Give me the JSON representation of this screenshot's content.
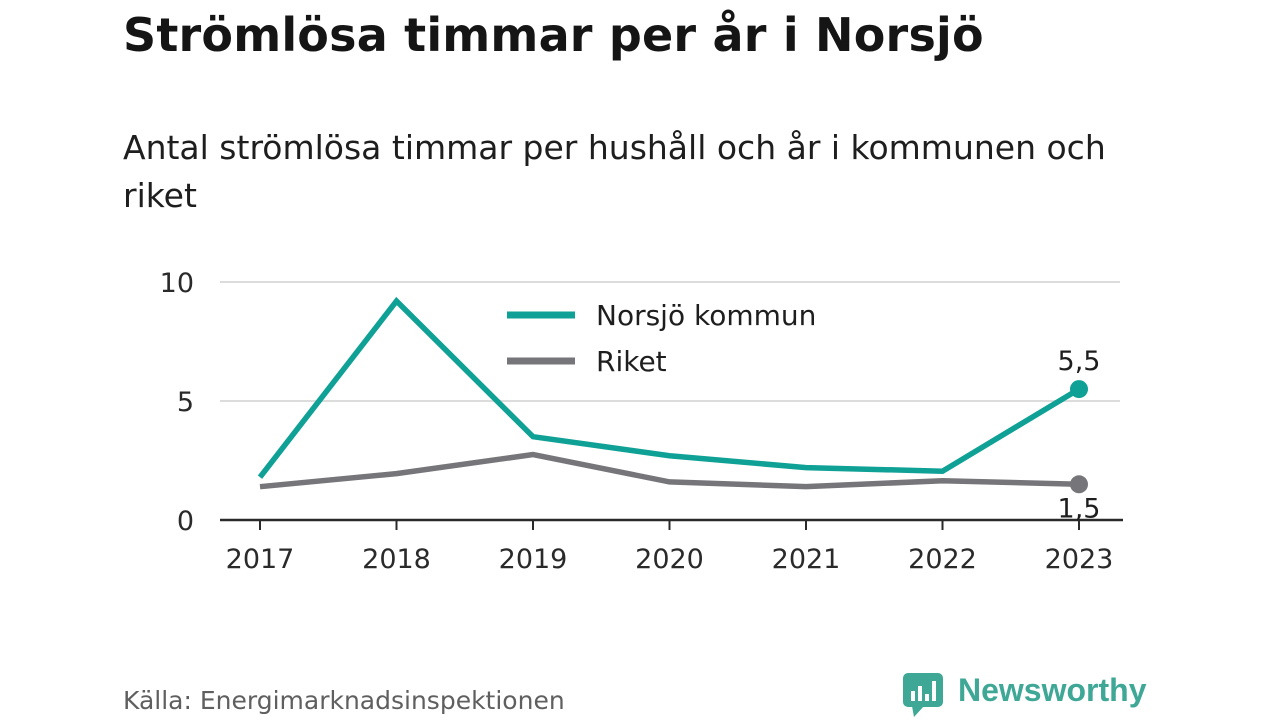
{
  "title": "Strömlösa timmar per år i Norsjö",
  "subtitle": "Antal strömlösa timmar per hushåll och år i kommunen och riket",
  "source": "Källa: Energimarknadsinspektionen",
  "brand": {
    "name": "Newsworthy",
    "icon": "newsworthy-logo-icon",
    "color": "#3fa796"
  },
  "chart_data": {
    "type": "line",
    "title": "",
    "xlabel": "",
    "ylabel": "",
    "categories": [
      "2017",
      "2018",
      "2019",
      "2020",
      "2021",
      "2022",
      "2023"
    ],
    "y_ticks": [
      0,
      5,
      10
    ],
    "ylim": [
      0,
      10
    ],
    "grid": true,
    "legend": "top-center",
    "series": [
      {
        "name": "Norsjö kommun",
        "color": "#0fa195",
        "values": [
          1.8,
          9.2,
          3.5,
          2.7,
          2.2,
          2.05,
          5.5
        ],
        "end_label": "5,5"
      },
      {
        "name": "Riket",
        "color": "#76767a",
        "values": [
          1.4,
          1.95,
          2.75,
          1.6,
          1.4,
          1.65,
          1.5
        ],
        "end_label": "1,5"
      }
    ]
  }
}
